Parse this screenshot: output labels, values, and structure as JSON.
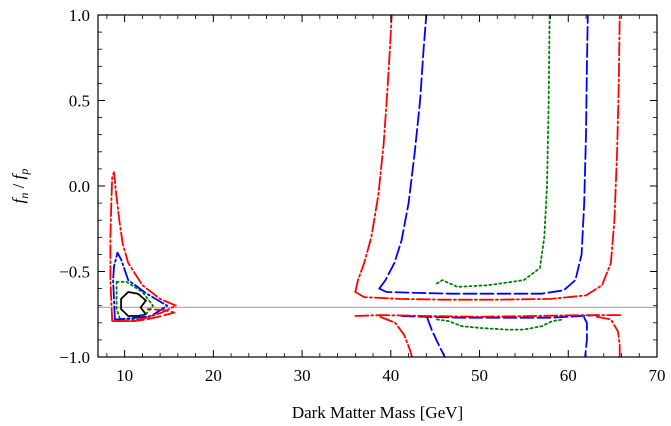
{
  "chart_data": {
    "type": "line",
    "title": "",
    "xlabel": "Dark Matter Mass [GeV]",
    "ylabel_parts": {
      "f": "f",
      "n": "n",
      "slash": " / ",
      "p": "p"
    },
    "xlim": [
      7,
      70
    ],
    "ylim": [
      -1.0,
      1.0
    ],
    "x_ticks": [
      {
        "value": 10,
        "label": "10"
      },
      {
        "value": 20,
        "label": "20"
      },
      {
        "value": 30,
        "label": "30"
      },
      {
        "value": 40,
        "label": "40"
      },
      {
        "value": 50,
        "label": "50"
      },
      {
        "value": 60,
        "label": "60"
      },
      {
        "value": 70,
        "label": "70"
      }
    ],
    "y_ticks": [
      {
        "value": -1.0,
        "label": "−1.0"
      },
      {
        "value": -0.5,
        "label": "−0.5"
      },
      {
        "value": 0.0,
        "label": "0.0"
      },
      {
        "value": 0.5,
        "label": "0.5"
      },
      {
        "value": 1.0,
        "label": "1.0"
      }
    ],
    "grid": false,
    "reference_line": {
      "y": -0.71,
      "color": "#b0b0b0"
    },
    "series": [
      {
        "color": "#000000",
        "dash": "",
        "paths": [
          [
            [
              9.6,
              -0.66
            ],
            [
              10.4,
              -0.62
            ],
            [
              11.5,
              -0.63
            ],
            [
              12.4,
              -0.67
            ],
            [
              11.8,
              -0.71
            ],
            [
              12.4,
              -0.75
            ],
            [
              11.5,
              -0.76
            ],
            [
              10.4,
              -0.76
            ],
            [
              9.6,
              -0.72
            ],
            [
              9.6,
              -0.66
            ]
          ]
        ]
      },
      {
        "color": "#008000",
        "dash": "2,3",
        "paths": [
          [
            [
              9.1,
              -0.56
            ],
            [
              10.2,
              -0.56
            ],
            [
              12.0,
              -0.62
            ],
            [
              13.2,
              -0.7
            ],
            [
              12.4,
              -0.75
            ],
            [
              10.8,
              -0.78
            ],
            [
              9.5,
              -0.78
            ],
            [
              9.1,
              -0.72
            ],
            [
              9.1,
              -0.56
            ]
          ],
          [
            [
              45.2,
              -0.57
            ],
            [
              45.8,
              -0.55
            ],
            [
              47.5,
              -0.59
            ],
            [
              51,
              -0.58
            ],
            [
              55,
              -0.55
            ],
            [
              56.8,
              -0.48
            ],
            [
              57.3,
              -0.3
            ],
            [
              57.6,
              0.0
            ],
            [
              57.8,
              0.5
            ],
            [
              57.9,
              1.0
            ]
          ],
          [
            [
              45.2,
              -0.78
            ],
            [
              46.5,
              -0.79
            ],
            [
              48,
              -0.82
            ],
            [
              50,
              -0.83
            ],
            [
              53,
              -0.84
            ],
            [
              55,
              -0.84
            ],
            [
              57,
              -0.82
            ],
            [
              58.2,
              -0.79
            ],
            [
              59.5,
              -0.78
            ]
          ]
        ]
      },
      {
        "color": "#0000ff",
        "dash": "13,3,2,3",
        "paths": [
          [
            [
              8.9,
              -0.78
            ],
            [
              8.7,
              -0.55
            ],
            [
              8.8,
              -0.47
            ],
            [
              9.2,
              -0.39
            ],
            [
              9.6,
              -0.43
            ],
            [
              10.4,
              -0.55
            ],
            [
              12.5,
              -0.63
            ],
            [
              14.8,
              -0.7
            ],
            [
              13.0,
              -0.76
            ],
            [
              11.2,
              -0.77
            ],
            [
              9.4,
              -0.78
            ],
            [
              8.9,
              -0.78
            ]
          ]
        ]
      },
      {
        "color": "#0000ff",
        "dash": "13,4",
        "paths": [
          [
            [
              38.7,
              -0.6
            ],
            [
              39.4,
              -0.55
            ],
            [
              40.4,
              -0.45
            ],
            [
              41.2,
              -0.32
            ],
            [
              42.0,
              -0.1
            ],
            [
              42.7,
              0.2
            ],
            [
              43.3,
              0.5
            ],
            [
              43.7,
              0.8
            ],
            [
              44.0,
              1.0
            ]
          ],
          [
            [
              38.7,
              -0.6
            ],
            [
              39.5,
              -0.62
            ],
            [
              43,
              -0.625
            ],
            [
              47,
              -0.63
            ],
            [
              52,
              -0.63
            ],
            [
              57,
              -0.63
            ],
            [
              59.5,
              -0.61
            ],
            [
              60.8,
              -0.55
            ],
            [
              61.5,
              -0.4
            ],
            [
              61.8,
              -0.1
            ],
            [
              62.0,
              0.3
            ],
            [
              62.1,
              0.7
            ],
            [
              62.2,
              1.0
            ]
          ],
          [
            [
              41.2,
              -0.76
            ],
            [
              44,
              -0.765
            ],
            [
              48,
              -0.77
            ],
            [
              53,
              -0.77
            ],
            [
              58,
              -0.77
            ],
            [
              61.5,
              -0.76
            ],
            [
              63.2,
              -0.755
            ]
          ],
          [
            [
              44.1,
              -0.77
            ],
            [
              44.6,
              -0.84
            ],
            [
              45.5,
              -0.94
            ],
            [
              46.1,
              -1.0
            ]
          ],
          [
            [
              61.8,
              -0.77
            ],
            [
              62.1,
              -0.8
            ],
            [
              62.1,
              -0.9
            ],
            [
              61.9,
              -1.0
            ]
          ]
        ]
      },
      {
        "color": "#ff0000",
        "dash": "13,3,2,3",
        "paths": [
          [
            [
              8.6,
              -0.79
            ],
            [
              8.4,
              -0.55
            ],
            [
              8.4,
              -0.3
            ],
            [
              8.5,
              -0.1
            ],
            [
              8.6,
              0.05
            ],
            [
              8.8,
              0.08
            ],
            [
              9.0,
              -0.02
            ],
            [
              9.4,
              -0.2
            ],
            [
              9.8,
              -0.34
            ],
            [
              10.4,
              -0.45
            ],
            [
              12,
              -0.58
            ],
            [
              14,
              -0.66
            ],
            [
              15.8,
              -0.7
            ],
            [
              14.2,
              -0.74
            ],
            [
              12.5,
              -0.77
            ],
            [
              10.5,
              -0.79
            ],
            [
              8.6,
              -0.79
            ]
          ],
          [
            [
              36.0,
              -0.62
            ],
            [
              36.3,
              -0.55
            ],
            [
              37.0,
              -0.45
            ],
            [
              37.8,
              -0.3
            ],
            [
              38.6,
              -0.05
            ],
            [
              39.2,
              0.25
            ],
            [
              39.6,
              0.55
            ],
            [
              39.9,
              0.8
            ],
            [
              40.1,
              1.0
            ]
          ],
          [
            [
              36.0,
              -0.62
            ],
            [
              37,
              -0.65
            ],
            [
              41,
              -0.66
            ],
            [
              46,
              -0.665
            ],
            [
              52,
              -0.665
            ],
            [
              58,
              -0.66
            ],
            [
              62,
              -0.64
            ],
            [
              63.8,
              -0.58
            ],
            [
              64.8,
              -0.45
            ],
            [
              65.2,
              -0.2
            ],
            [
              65.5,
              0.2
            ],
            [
              65.7,
              0.6
            ],
            [
              65.8,
              1.0
            ]
          ],
          [
            [
              36.0,
              -0.76
            ],
            [
              39,
              -0.755
            ],
            [
              44,
              -0.76
            ],
            [
              50,
              -0.765
            ],
            [
              56,
              -0.76
            ],
            [
              62,
              -0.755
            ],
            [
              66,
              -0.755
            ]
          ],
          [
            [
              38.8,
              -0.765
            ],
            [
              40.5,
              -0.8
            ],
            [
              41.5,
              -0.87
            ],
            [
              42.1,
              -0.95
            ],
            [
              42.4,
              -1.0
            ]
          ],
          [
            [
              63.2,
              -0.765
            ],
            [
              64.8,
              -0.78
            ],
            [
              65.6,
              -0.85
            ],
            [
              65.8,
              -0.93
            ],
            [
              65.8,
              -1.0
            ]
          ]
        ]
      },
      {
        "color": "#ff0000",
        "dash": "13,4",
        "paths": [
          [
            [
              8.8,
              -0.79
            ],
            [
              9.5,
              -0.79
            ],
            [
              11,
              -0.79
            ],
            [
              12.5,
              -0.78
            ],
            [
              14.2,
              -0.76
            ],
            [
              15.6,
              -0.74
            ],
            [
              14.4,
              -0.725
            ],
            [
              12.6,
              -0.72
            ]
          ]
        ]
      }
    ]
  }
}
